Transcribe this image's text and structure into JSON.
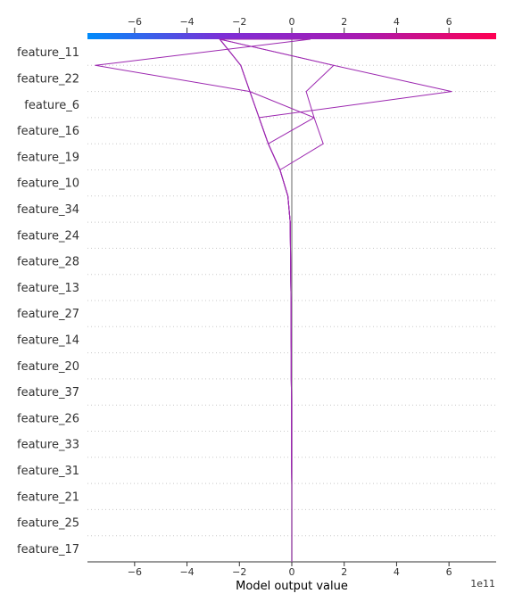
{
  "chart_data": {
    "type": "decision",
    "xlabel": "Model output value",
    "x_offset_label": "1e11",
    "xlim": [
      -7.8,
      7.8
    ],
    "x_ticks": [
      -6,
      -4,
      -2,
      0,
      2,
      4,
      6
    ],
    "x_tick_labels": [
      "−6",
      "−4",
      "−2",
      "0",
      "2",
      "4",
      "6"
    ],
    "base_value": 0,
    "grid": "dotted horizontal",
    "colorbar": {
      "position": "top",
      "stops": [
        "#008bfb",
        "#7d2ed6",
        "#a81bb1",
        "#ff0052"
      ],
      "range": [
        -7.8,
        7.8
      ]
    },
    "line_color": "#9c27b0",
    "features": [
      "feature_11",
      "feature_22",
      "feature_6",
      "feature_16",
      "feature_19",
      "feature_10",
      "feature_34",
      "feature_24",
      "feature_28",
      "feature_13",
      "feature_27",
      "feature_14",
      "feature_20",
      "feature_37",
      "feature_26",
      "feature_33",
      "feature_31",
      "feature_21",
      "feature_25",
      "feature_17"
    ],
    "series": [
      {
        "values": [
          -2.75,
          -1.95,
          -1.6,
          -1.25,
          -0.9,
          -0.45,
          -0.15,
          -0.06,
          -0.05,
          -0.04,
          -0.03,
          -0.03,
          -0.02,
          -0.02,
          -0.01,
          -0.01,
          -0.01,
          0,
          0,
          0,
          0
        ]
      },
      {
        "values": [
          -2.75,
          -1.95,
          -1.6,
          -1.25,
          -0.9,
          -0.45,
          -0.15,
          -0.06,
          -0.05,
          -0.04,
          -0.03,
          -0.03,
          -0.02,
          -0.02,
          -0.01,
          -0.01,
          -0.01,
          0,
          0,
          0,
          0
        ]
      },
      {
        "values": [
          0.7,
          -7.5,
          -1.6,
          -1.25,
          -0.9,
          -0.45,
          -0.15,
          -0.06,
          -0.05,
          -0.04,
          -0.03,
          -0.03,
          -0.02,
          -0.02,
          -0.01,
          -0.01,
          -0.01,
          0,
          0,
          0,
          0
        ]
      },
      {
        "values": [
          -2.75,
          1.6,
          0.55,
          0.85,
          -0.9,
          -0.45,
          -0.15,
          -0.06,
          -0.05,
          -0.04,
          -0.03,
          -0.03,
          -0.02,
          -0.02,
          -0.01,
          -0.01,
          -0.01,
          0,
          0,
          0,
          0
        ]
      },
      {
        "values": [
          -2.75,
          1.6,
          6.1,
          -1.25,
          -0.9,
          -0.45,
          -0.15,
          -0.06,
          -0.05,
          -0.04,
          -0.03,
          -0.03,
          -0.02,
          -0.02,
          -0.01,
          -0.01,
          -0.01,
          0,
          0,
          0,
          0
        ]
      },
      {
        "values": [
          -2.75,
          -1.95,
          -1.6,
          0.85,
          1.2,
          -0.45,
          -0.15,
          -0.06,
          -0.05,
          -0.04,
          -0.03,
          -0.03,
          -0.02,
          -0.02,
          -0.01,
          -0.01,
          -0.01,
          0,
          0,
          0,
          0
        ]
      }
    ]
  }
}
